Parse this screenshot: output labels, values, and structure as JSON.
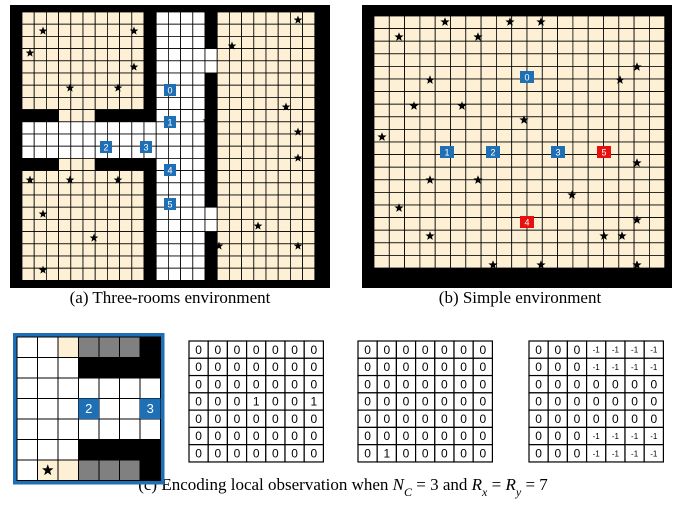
{
  "panel_a": {
    "caption": "(a) Three-rooms environment",
    "agents": [
      {
        "label": "0",
        "color": "#1f6fb5"
      },
      {
        "label": "1",
        "color": "#1f6fb5"
      },
      {
        "label": "2",
        "color": "#1f6fb5"
      },
      {
        "label": "3",
        "color": "#1f6fb5"
      },
      {
        "label": "4",
        "color": "#1f6fb5"
      },
      {
        "label": "5",
        "color": "#1f6fb5"
      }
    ]
  },
  "panel_b": {
    "caption": "(b) Simple environment",
    "agents": [
      {
        "label": "0",
        "color": "#1f6fb5"
      },
      {
        "label": "1",
        "color": "#1f6fb5"
      },
      {
        "label": "2",
        "color": "#1f6fb5"
      },
      {
        "label": "3",
        "color": "#1f6fb5"
      },
      {
        "label": "4",
        "color": "#e8100f"
      },
      {
        "label": "5",
        "color": "#e8100f"
      }
    ]
  },
  "panel_c": {
    "caption": [
      "(c) Encoding local observation when ",
      "N",
      "C",
      " = 3 and ",
      "R",
      "x",
      " = ",
      "R",
      "y",
      " = 7"
    ],
    "observation_agents": [
      "2",
      "3"
    ],
    "matrices": [
      [
        [
          0,
          0,
          0,
          0,
          0,
          0,
          0
        ],
        [
          0,
          0,
          0,
          0,
          0,
          0,
          0
        ],
        [
          0,
          0,
          0,
          0,
          0,
          0,
          0
        ],
        [
          0,
          0,
          0,
          1,
          0,
          0,
          1
        ],
        [
          0,
          0,
          0,
          0,
          0,
          0,
          0
        ],
        [
          0,
          0,
          0,
          0,
          0,
          0,
          0
        ],
        [
          0,
          0,
          0,
          0,
          0,
          0,
          0
        ]
      ],
      [
        [
          0,
          0,
          0,
          0,
          0,
          0,
          0
        ],
        [
          0,
          0,
          0,
          0,
          0,
          0,
          0
        ],
        [
          0,
          0,
          0,
          0,
          0,
          0,
          0
        ],
        [
          0,
          0,
          0,
          0,
          0,
          0,
          0
        ],
        [
          0,
          0,
          0,
          0,
          0,
          0,
          0
        ],
        [
          0,
          0,
          0,
          0,
          0,
          0,
          0
        ],
        [
          0,
          1,
          0,
          0,
          0,
          0,
          0
        ]
      ],
      [
        [
          0,
          0,
          0,
          -1,
          -1,
          -1,
          -1
        ],
        [
          0,
          0,
          0,
          -1,
          -1,
          -1,
          -1
        ],
        [
          0,
          0,
          0,
          0,
          0,
          0,
          0
        ],
        [
          0,
          0,
          0,
          0,
          0,
          0,
          0
        ],
        [
          0,
          0,
          0,
          0,
          0,
          0,
          0
        ],
        [
          0,
          0,
          0,
          -1,
          -1,
          -1,
          -1
        ],
        [
          0,
          0,
          0,
          -1,
          -1,
          -1,
          -1
        ]
      ]
    ]
  }
}
